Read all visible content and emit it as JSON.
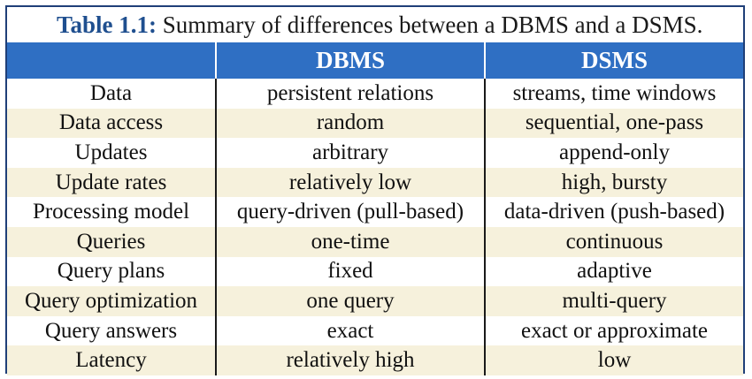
{
  "caption": {
    "label": "Table 1.1:",
    "text": "Summary of differences between a DBMS and a DSMS."
  },
  "table": {
    "headers": [
      "",
      "DBMS",
      "DSMS"
    ],
    "rows": [
      [
        "Data",
        "persistent relations",
        "streams, time windows"
      ],
      [
        "Data access",
        "random",
        "sequential, one-pass"
      ],
      [
        "Updates",
        "arbitrary",
        "append-only"
      ],
      [
        "Update rates",
        "relatively low",
        "high, bursty"
      ],
      [
        "Processing model",
        "query-driven (pull-based)",
        "data-driven (push-based)"
      ],
      [
        "Queries",
        "one-time",
        "continuous"
      ],
      [
        "Query plans",
        "fixed",
        "adaptive"
      ],
      [
        "Query optimization",
        "one query",
        "multi-query"
      ],
      [
        "Query answers",
        "exact",
        "exact or approximate"
      ],
      [
        "Latency",
        "relatively high",
        "low"
      ]
    ]
  },
  "colors": {
    "border": "#1f3f78",
    "header_bg": "#2f6fc3",
    "label_accent": "#1f4f8f",
    "stripe_bg": "#f6f1dc"
  }
}
